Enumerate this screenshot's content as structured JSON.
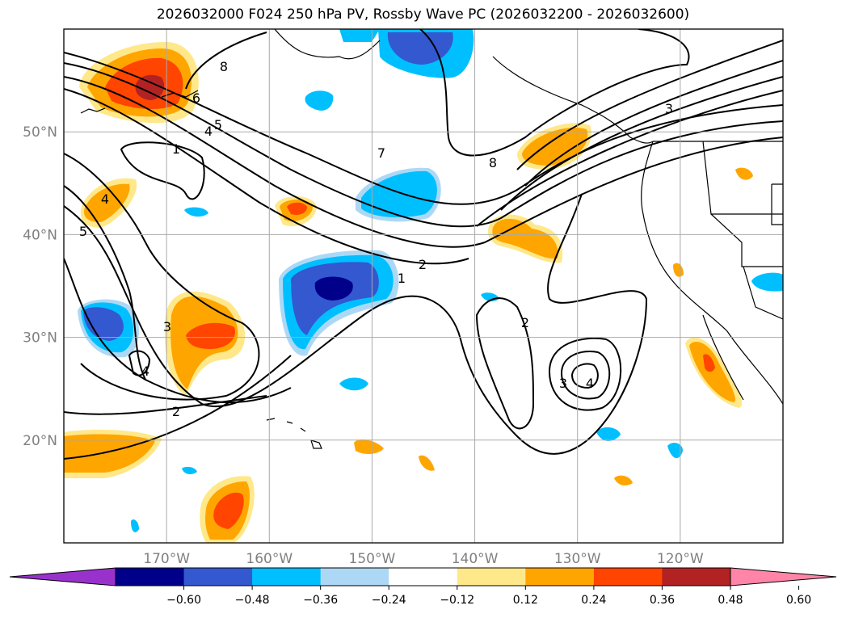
{
  "title": "2026032000 F024 250 hPa PV, Rossby Wave PC (2026032200 - 2026032600)",
  "map": {
    "extent": {
      "lon_min": -180,
      "lon_max": -110,
      "lat_min": 10,
      "lat_max": 60
    },
    "lat_ticks": [
      {
        "lat": 50,
        "label": "50°N"
      },
      {
        "lat": 40,
        "label": "40°N"
      },
      {
        "lat": 30,
        "label": "30°N"
      },
      {
        "lat": 20,
        "label": "20°N"
      }
    ],
    "lon_ticks": [
      {
        "lon": -170,
        "label": "170°W"
      },
      {
        "lon": -160,
        "label": "160°W"
      },
      {
        "lon": -150,
        "label": "150°W"
      },
      {
        "lon": -140,
        "label": "140°W"
      },
      {
        "lon": -130,
        "label": "130°W"
      },
      {
        "lon": -120,
        "label": "120°W"
      }
    ],
    "grid": true,
    "contour_labels": [
      "8",
      "6",
      "5",
      "4",
      "7",
      "1",
      "4",
      "5",
      "8",
      "3",
      "2",
      "1",
      "2",
      "3",
      "4",
      "3",
      "4",
      "2"
    ]
  },
  "colorbar": {
    "ticks": [
      "−0.60",
      "−0.48",
      "−0.36",
      "−0.24",
      "−0.12",
      "0.12",
      "0.24",
      "0.36",
      "0.48",
      "0.60"
    ],
    "colors": [
      "#9932cc",
      "#00008b",
      "#3358d0",
      "#00bfff",
      "#add8f5",
      "#ffffff",
      "#ffe88a",
      "#ffa500",
      "#ff4500",
      "#b22222",
      "#ff85a8"
    ]
  },
  "colors": {
    "neg_dark": "#00008b",
    "neg_mid": "#3358d0",
    "neg_light": "#00bfff",
    "neg_pale": "#add8f5",
    "pos_pale": "#ffe88a",
    "pos_light": "#ffa500",
    "pos_mid": "#ff4500",
    "pos_dark": "#b22222"
  }
}
